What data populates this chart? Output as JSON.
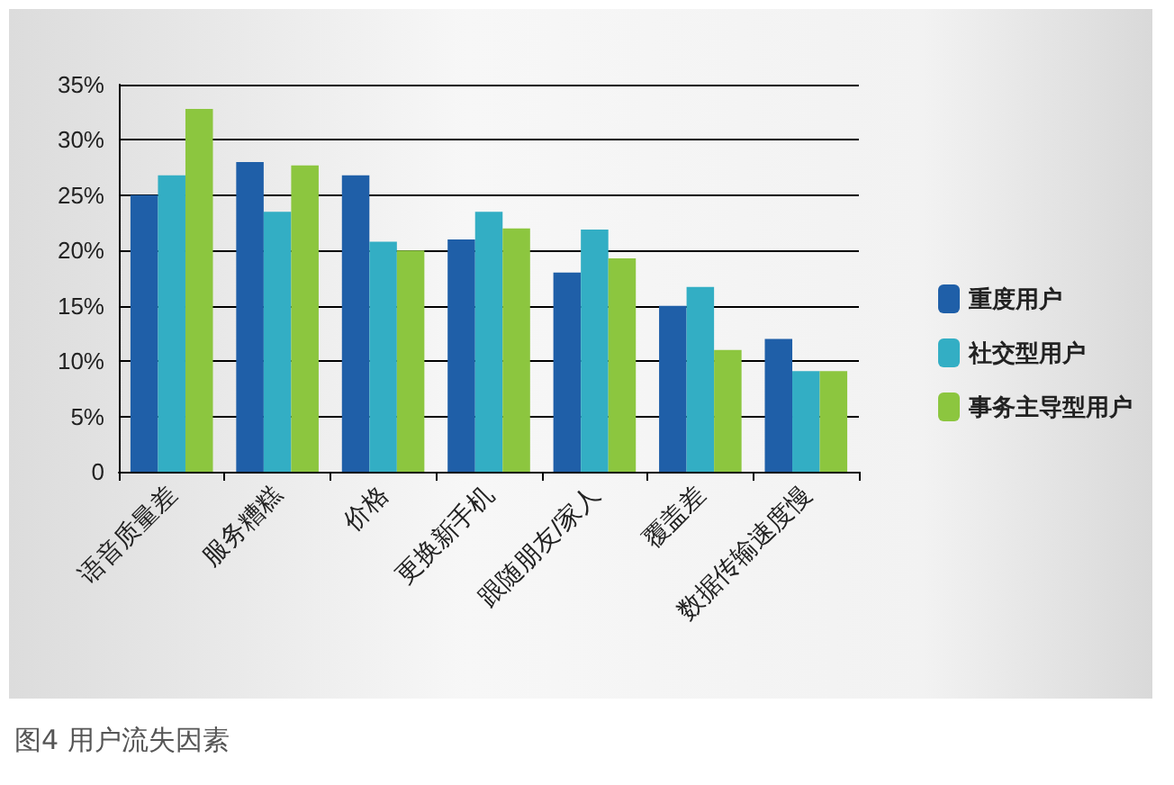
{
  "chart_data": {
    "type": "bar",
    "annotations": [
      "图4  用户流失因素"
    ],
    "categories": [
      "语音质量差",
      "服务糟糕",
      "价格",
      "更换新手机",
      "跟随朋友/家人",
      "覆盖差",
      "数据传输速度慢"
    ],
    "series": [
      {
        "name": "重度用户",
        "color": "#1f5fa8",
        "values": [
          25,
          28,
          26.8,
          21,
          18,
          15,
          12
        ]
      },
      {
        "name": "社交型用户",
        "color": "#33aec4",
        "values": [
          26.8,
          23.5,
          20.8,
          23.5,
          21.9,
          16.7,
          9.1
        ]
      },
      {
        "name": "事务主导型用户",
        "color": "#8cc63f",
        "values": [
          32.8,
          27.7,
          20,
          22,
          19.3,
          11,
          9.1
        ]
      }
    ],
    "ylim": [
      0,
      35
    ],
    "yticks": [
      {
        "value": 0,
        "label": "0"
      },
      {
        "value": 5,
        "label": "5%"
      },
      {
        "value": 10,
        "label": "10%"
      },
      {
        "value": 15,
        "label": "15%"
      },
      {
        "value": 20,
        "label": "20%"
      },
      {
        "value": 25,
        "label": "25%"
      },
      {
        "value": 30,
        "label": "30%"
      },
      {
        "value": 35,
        "label": "35%"
      }
    ],
    "grid": "y",
    "legend": "right"
  }
}
